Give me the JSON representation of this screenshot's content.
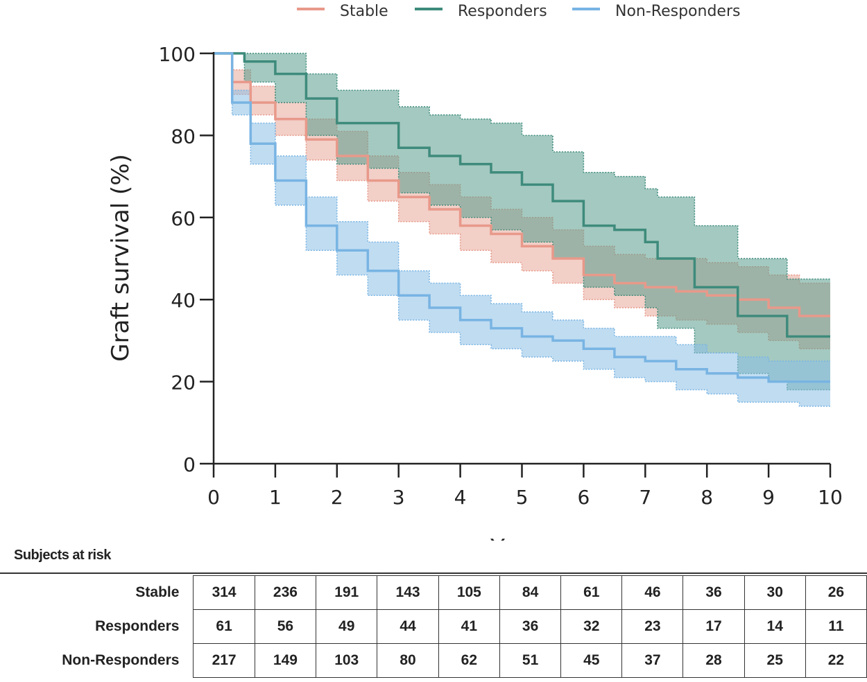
{
  "chart_data": {
    "type": "line",
    "xlabel": "Years",
    "ylabel": "Graft survival (%)",
    "xlim": [
      0,
      10
    ],
    "ylim": [
      0,
      100
    ],
    "x_ticks": [
      "0",
      "1",
      "2",
      "3",
      "4",
      "5",
      "6",
      "7",
      "8",
      "9",
      "10"
    ],
    "y_ticks": [
      "0",
      "20",
      "40",
      "60",
      "80",
      "100"
    ],
    "grid": false,
    "legend_position": "top",
    "series": [
      {
        "name": "Stable",
        "color": "#e8998a",
        "band_color": "#e8a899",
        "x": [
          0,
          0.3,
          0.6,
          1.0,
          1.5,
          2.0,
          2.5,
          3.0,
          3.5,
          4.0,
          4.5,
          5.0,
          5.5,
          6.0,
          6.5,
          7.0,
          7.5,
          8.0,
          8.5,
          9.0,
          9.5,
          10.0
        ],
        "y": [
          100,
          93,
          88,
          84,
          79,
          75,
          69,
          65,
          62,
          58,
          56,
          53,
          50,
          46,
          44,
          43,
          42,
          41,
          40,
          38,
          36,
          36
        ],
        "lower": [
          100,
          90,
          85,
          80,
          74,
          69,
          64,
          59,
          56,
          52,
          49,
          47,
          44,
          40,
          38,
          36,
          35,
          34,
          32,
          30,
          28,
          28
        ],
        "upper": [
          100,
          96,
          92,
          88,
          84,
          81,
          75,
          71,
          68,
          65,
          62,
          60,
          57,
          53,
          51,
          50,
          50,
          49,
          48,
          46,
          44,
          44
        ]
      },
      {
        "name": "Responders",
        "color": "#3e8b7c",
        "band_color": "#5a9c8c",
        "x": [
          0,
          0.5,
          0.8,
          1.0,
          1.5,
          2.0,
          2.5,
          3.0,
          3.5,
          4.0,
          4.5,
          5.0,
          5.5,
          6.0,
          6.5,
          7.0,
          7.2,
          7.8,
          8.5,
          9.0,
          9.3,
          10.0
        ],
        "y": [
          100,
          98,
          98,
          95,
          89,
          83,
          83,
          77,
          75,
          73,
          71,
          68,
          64,
          58,
          57,
          54,
          50,
          43,
          36,
          36,
          31,
          31
        ],
        "lower": [
          100,
          93,
          93,
          88,
          80,
          73,
          72,
          66,
          63,
          60,
          57,
          54,
          50,
          43,
          41,
          38,
          33,
          27,
          22,
          20,
          18,
          18
        ],
        "upper": [
          100,
          100,
          100,
          100,
          95,
          91,
          91,
          87,
          85,
          84,
          83,
          80,
          76,
          71,
          70,
          67,
          65,
          58,
          50,
          50,
          45,
          45
        ]
      },
      {
        "name": "Non-Responders",
        "color": "#78b4e3",
        "band_color": "#8cbfe6",
        "x": [
          0,
          0.3,
          0.6,
          1.0,
          1.5,
          2.0,
          2.5,
          3.0,
          3.5,
          4.0,
          4.5,
          5.0,
          5.5,
          6.0,
          6.5,
          7.0,
          7.5,
          8.0,
          8.5,
          9.0,
          9.5,
          10.0
        ],
        "y": [
          100,
          88,
          78,
          69,
          58,
          52,
          47,
          41,
          38,
          35,
          33,
          31,
          30,
          28,
          26,
          25,
          23,
          22,
          21,
          20,
          20,
          20
        ],
        "lower": [
          100,
          85,
          73,
          63,
          52,
          46,
          41,
          35,
          32,
          29,
          28,
          26,
          25,
          23,
          21,
          20,
          18,
          17,
          15,
          15,
          14,
          14
        ],
        "upper": [
          100,
          91,
          83,
          75,
          65,
          59,
          54,
          47,
          44,
          41,
          39,
          37,
          35,
          33,
          31,
          31,
          29,
          27,
          26,
          25,
          25,
          25
        ]
      }
    ]
  },
  "risk_table": {
    "title": "Subjects at risk",
    "rows": [
      {
        "label": "Stable",
        "values": [
          "314",
          "236",
          "191",
          "143",
          "105",
          "84",
          "61",
          "46",
          "36",
          "30",
          "26"
        ]
      },
      {
        "label": "Responders",
        "values": [
          "61",
          "56",
          "49",
          "44",
          "41",
          "36",
          "32",
          "23",
          "17",
          "14",
          "11"
        ]
      },
      {
        "label": "Non-Responders",
        "values": [
          "217",
          "149",
          "103",
          "80",
          "62",
          "51",
          "45",
          "37",
          "28",
          "25",
          "22"
        ]
      }
    ]
  }
}
